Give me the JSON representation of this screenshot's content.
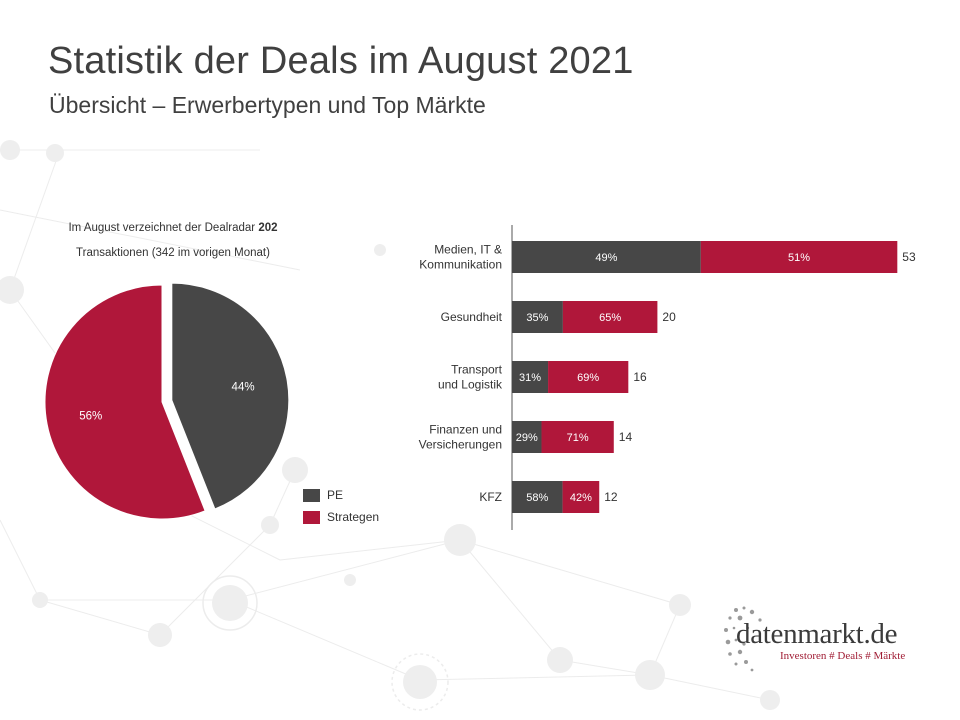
{
  "header": {
    "title": "Statistik der Deals im August 2021",
    "subtitle": "Übersicht – Erwerbertypen und Top Märkte"
  },
  "note": {
    "line1_text": "Im August verzeichnet der Dealradar ",
    "line1_bold": "202",
    "line2": "Transaktionen (342 im vorigen Monat)"
  },
  "colors": {
    "pe": "#474747",
    "strategen": "#b0173a"
  },
  "legend": {
    "pe": "PE",
    "strategen": "Strategen"
  },
  "chart_data": [
    {
      "type": "pie",
      "slices": [
        {
          "name": "PE",
          "value": 44,
          "label": "44%",
          "exploded": true
        },
        {
          "name": "Strategen",
          "value": 56,
          "label": "56%",
          "exploded": false
        }
      ],
      "legend_position": "bottom-right"
    },
    {
      "type": "bar",
      "orientation": "horizontal",
      "stacked": true,
      "categories": [
        "Medien, IT &\nKommunikation",
        "Gesundheit",
        "Transport\nund Logistik",
        "Finanzen und\nVersicherungen",
        "KFZ"
      ],
      "totals": [
        53,
        20,
        16,
        14,
        12
      ],
      "series": [
        {
          "name": "PE",
          "share_labels": [
            "49%",
            "35%",
            "31%",
            "29%",
            "58%"
          ],
          "shares": [
            49,
            35,
            31,
            29,
            58
          ]
        },
        {
          "name": "Strategen",
          "share_labels": [
            "51%",
            "65%",
            "69%",
            "71%",
            "42%"
          ],
          "shares": [
            51,
            65,
            69,
            71,
            42
          ]
        }
      ],
      "xlim": [
        0,
        53
      ],
      "grid": false
    }
  ],
  "logo": {
    "name": "datenmarkt.de",
    "tagline": "Investoren # Deals # Märkte"
  }
}
